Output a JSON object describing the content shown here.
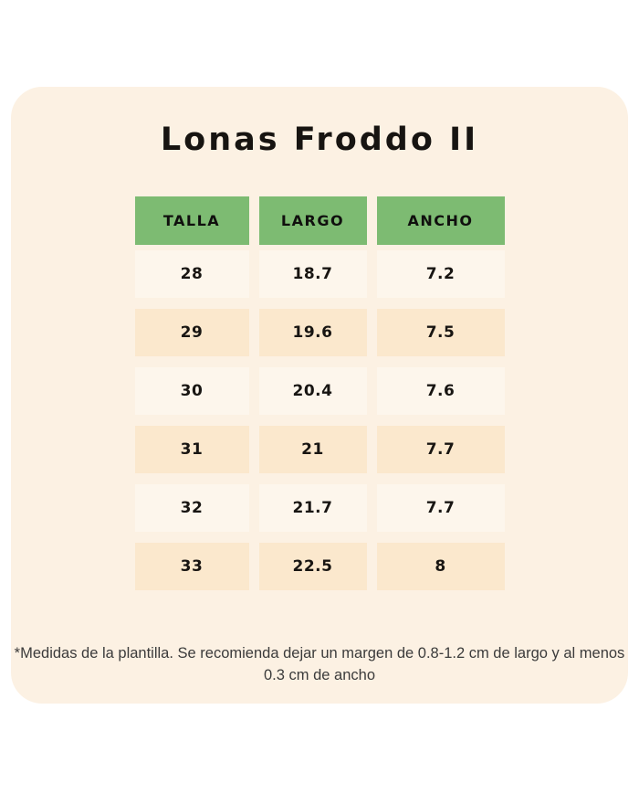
{
  "title": "Lonas Froddo II",
  "chart_data": {
    "type": "table",
    "title": "Lonas Froddo II",
    "columns": [
      "TALLA",
      "LARGO",
      "ANCHO"
    ],
    "rows": [
      [
        "28",
        "18.7",
        "7.2"
      ],
      [
        "29",
        "19.6",
        "7.5"
      ],
      [
        "30",
        "20.4",
        "7.6"
      ],
      [
        "31",
        "21",
        "7.7"
      ],
      [
        "32",
        "21.7",
        "7.7"
      ],
      [
        "33",
        "22.5",
        "8"
      ]
    ],
    "footnote": "*Medidas de la plantilla. Se recomienda dejar un margen de 0.8-1.2 cm de largo y al menos 0.3 cm de ancho"
  },
  "colors": {
    "page_background": "#ffffff",
    "card_background": "#fcf1e3",
    "header_green": "#7dbb72",
    "row_light": "#fdf6ec",
    "row_peach": "#fbe8cd",
    "text": "#171411",
    "footnote_text": "#3b3b3b"
  }
}
